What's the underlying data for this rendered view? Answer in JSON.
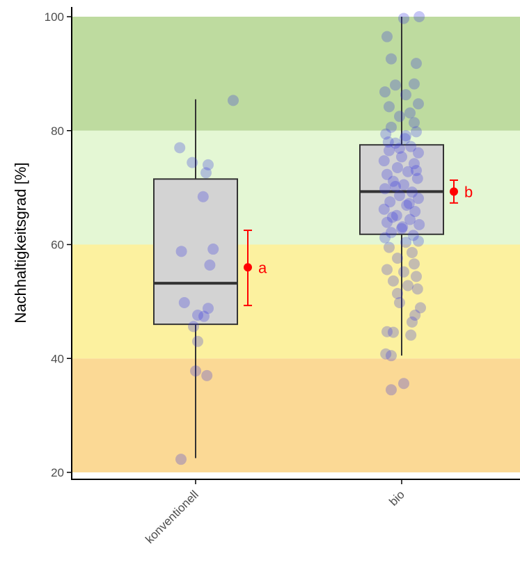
{
  "chart_data": {
    "type": "boxplot",
    "title": "",
    "xlabel": "",
    "ylabel": "Nachhaltigkeitsgrad [%]",
    "ylim": [
      20,
      100
    ],
    "yticks": [
      20,
      40,
      60,
      80,
      100
    ],
    "categories": [
      "konventionell",
      "bio"
    ],
    "bands": [
      {
        "from": 20,
        "to": 40,
        "color": "#fbd995"
      },
      {
        "from": 40,
        "to": 60,
        "color": "#fcf19f"
      },
      {
        "from": 60,
        "to": 80,
        "color": "#e4f7d4"
      },
      {
        "from": 80,
        "to": 100,
        "color": "#bedb9f"
      }
    ],
    "boxes": [
      {
        "category": "konventionell",
        "min": 22.5,
        "q1": 46,
        "median": 53.2,
        "q3": 71.5,
        "max": 85.5,
        "mean": 56,
        "ci_low": 49.3,
        "ci_high": 62.5,
        "letter": "a"
      },
      {
        "category": "bio",
        "min": 40.5,
        "q1": 61.8,
        "median": 69.3,
        "q3": 77.5,
        "max": 100,
        "mean": 69.3,
        "ci_low": 67.3,
        "ci_high": 71.3,
        "letter": "b"
      }
    ],
    "points": {
      "konventionell": [
        {
          "j": 0.9,
          "y": 85.3
        },
        {
          "j": -0.38,
          "y": 77
        },
        {
          "j": -0.08,
          "y": 74.4
        },
        {
          "j": 0.3,
          "y": 74
        },
        {
          "j": 0.25,
          "y": 72.6
        },
        {
          "j": 0.18,
          "y": 68.4
        },
        {
          "j": -0.34,
          "y": 58.8
        },
        {
          "j": 0.42,
          "y": 59.2
        },
        {
          "j": 0.34,
          "y": 56.4
        },
        {
          "j": -0.27,
          "y": 49.8
        },
        {
          "j": 0.3,
          "y": 48.8
        },
        {
          "j": 0.05,
          "y": 47.6
        },
        {
          "j": 0.2,
          "y": 47.4
        },
        {
          "j": -0.05,
          "y": 45.6
        },
        {
          "j": 0.05,
          "y": 43
        },
        {
          "j": 0.0,
          "y": 37.8
        },
        {
          "j": 0.27,
          "y": 37
        },
        {
          "j": -0.35,
          "y": 22.3
        }
      ],
      "bio": [
        {
          "j": 0.42,
          "y": 100
        },
        {
          "j": 0.05,
          "y": 99.7
        },
        {
          "j": -0.35,
          "y": 96.5
        },
        {
          "j": -0.25,
          "y": 92.6
        },
        {
          "j": 0.35,
          "y": 91.8
        },
        {
          "j": -0.15,
          "y": 88
        },
        {
          "j": 0.3,
          "y": 88.2
        },
        {
          "j": -0.4,
          "y": 86.8
        },
        {
          "j": 0.1,
          "y": 86.3
        },
        {
          "j": 0.4,
          "y": 84.7
        },
        {
          "j": -0.3,
          "y": 84.2
        },
        {
          "j": 0.2,
          "y": 83.1
        },
        {
          "j": -0.05,
          "y": 82.5
        },
        {
          "j": 0.3,
          "y": 81.4
        },
        {
          "j": -0.25,
          "y": 80.6
        },
        {
          "j": 0.35,
          "y": 79.8
        },
        {
          "j": -0.38,
          "y": 79.4
        },
        {
          "j": 0.08,
          "y": 78.6
        },
        {
          "j": -0.15,
          "y": 77.8
        },
        {
          "j": 0.22,
          "y": 77.2
        },
        {
          "j": -0.3,
          "y": 76.5
        },
        {
          "j": 0.4,
          "y": 76.1
        },
        {
          "j": 0.0,
          "y": 75.4
        },
        {
          "j": -0.42,
          "y": 74.7
        },
        {
          "j": 0.3,
          "y": 74.2
        },
        {
          "j": -0.1,
          "y": 73.5
        },
        {
          "j": 0.15,
          "y": 72.8
        },
        {
          "j": -0.35,
          "y": 72.3
        },
        {
          "j": 0.38,
          "y": 71.6
        },
        {
          "j": -0.2,
          "y": 71.1
        },
        {
          "j": 0.05,
          "y": 70.5
        },
        {
          "j": -0.4,
          "y": 69.8
        },
        {
          "j": 0.25,
          "y": 69.2
        },
        {
          "j": -0.05,
          "y": 68.6
        },
        {
          "j": 0.4,
          "y": 68.1
        },
        {
          "j": -0.28,
          "y": 67.5
        },
        {
          "j": 0.12,
          "y": 66.9
        },
        {
          "j": -0.42,
          "y": 66.2
        },
        {
          "j": 0.32,
          "y": 65.8
        },
        {
          "j": -0.12,
          "y": 65.1
        },
        {
          "j": 0.2,
          "y": 64.4
        },
        {
          "j": -0.35,
          "y": 63.9
        },
        {
          "j": 0.42,
          "y": 63.5
        },
        {
          "j": 0.0,
          "y": 62.8
        },
        {
          "j": -0.25,
          "y": 62.1
        },
        {
          "j": 0.28,
          "y": 61.6
        },
        {
          "j": -0.4,
          "y": 61.2
        },
        {
          "j": 0.1,
          "y": 60.4
        },
        {
          "j": 0.4,
          "y": 60.6
        },
        {
          "j": -0.3,
          "y": 59.5
        },
        {
          "j": 0.25,
          "y": 58.6
        },
        {
          "j": -0.1,
          "y": 57.6
        },
        {
          "j": 0.3,
          "y": 56.6
        },
        {
          "j": -0.35,
          "y": 55.6
        },
        {
          "j": 0.05,
          "y": 55.2
        },
        {
          "j": 0.35,
          "y": 54.4
        },
        {
          "j": -0.2,
          "y": 53.6
        },
        {
          "j": 0.15,
          "y": 52.8
        },
        {
          "j": 0.38,
          "y": 52.2
        },
        {
          "j": -0.1,
          "y": 51.4
        },
        {
          "j": -0.05,
          "y": 49.8
        },
        {
          "j": 0.45,
          "y": 48.9
        },
        {
          "j": 0.32,
          "y": 47.6
        },
        {
          "j": 0.25,
          "y": 46.4
        },
        {
          "j": -0.35,
          "y": 44.7
        },
        {
          "j": -0.2,
          "y": 44.6
        },
        {
          "j": 0.22,
          "y": 44.1
        },
        {
          "j": -0.38,
          "y": 40.8
        },
        {
          "j": -0.25,
          "y": 40.5
        },
        {
          "j": -0.25,
          "y": 34.5
        },
        {
          "j": 0.05,
          "y": 35.6
        },
        {
          "j": -0.15,
          "y": 70.2
        },
        {
          "j": 0.18,
          "y": 67.2
        },
        {
          "j": -0.22,
          "y": 64.8
        },
        {
          "j": 0.1,
          "y": 79.1
        },
        {
          "j": -0.32,
          "y": 78.0
        },
        {
          "j": 0.35,
          "y": 73.0
        },
        {
          "j": -0.05,
          "y": 76.9
        },
        {
          "j": 0.02,
          "y": 63.1
        }
      ]
    },
    "colors": {
      "box_fill": "#d3d3d3",
      "box_line": "#333333",
      "point": "#3333dd",
      "mean": "#ff0000",
      "axis": "#000000",
      "tick_label": "#4d4d4d"
    }
  }
}
